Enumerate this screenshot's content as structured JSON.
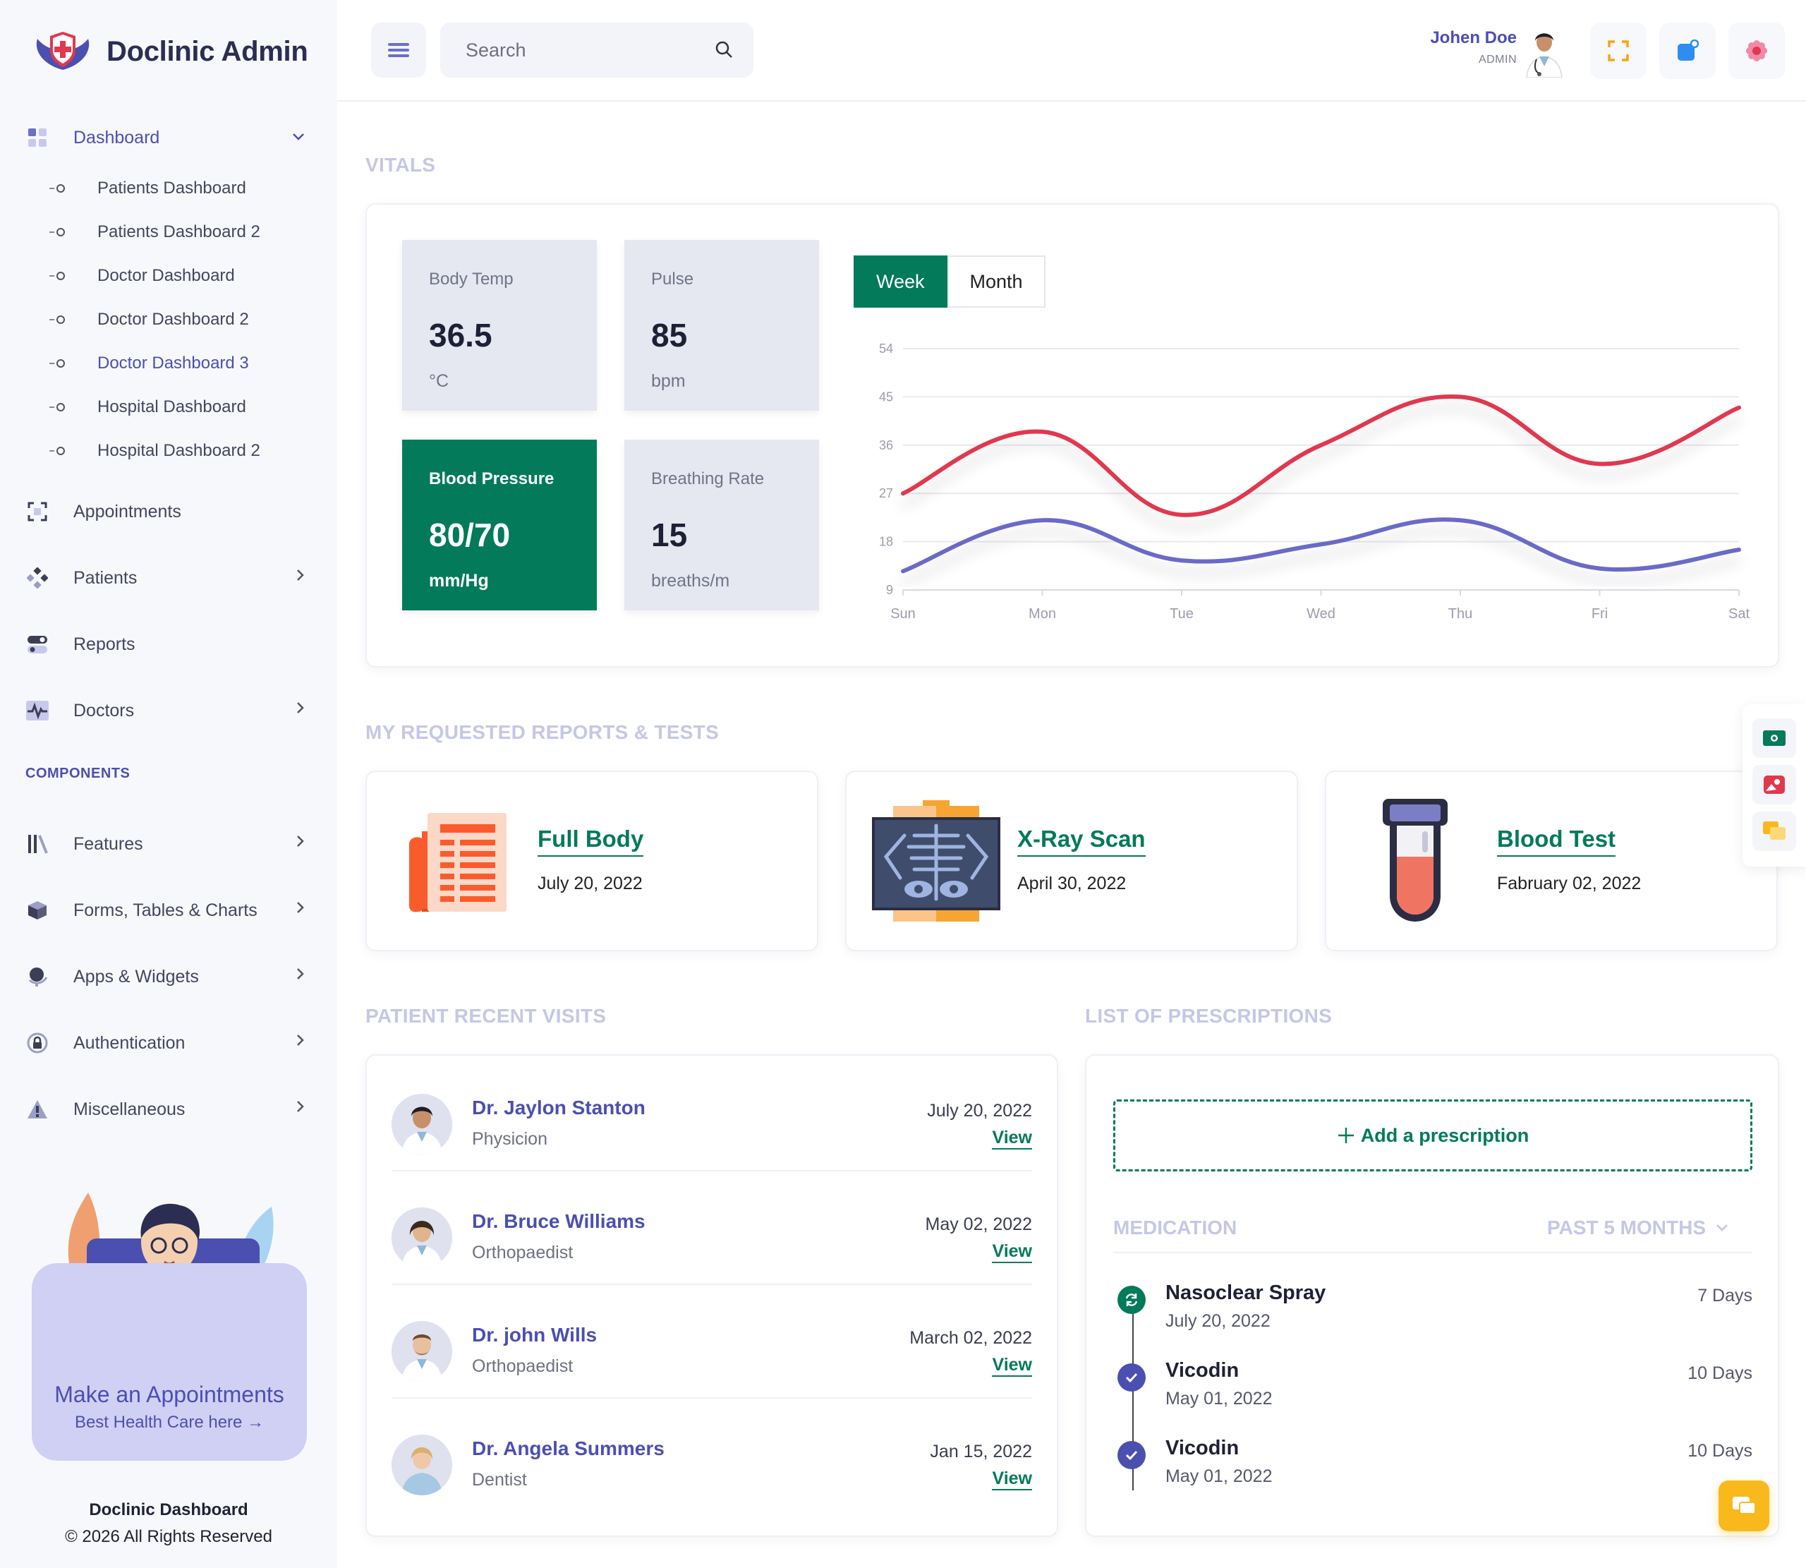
{
  "brand": {
    "name": "Doclinic Admin"
  },
  "sidebar": {
    "dashboard_label": "Dashboard",
    "sub_items": [
      {
        "label": "Patients Dashboard",
        "active": false
      },
      {
        "label": "Patients Dashboard 2",
        "active": false
      },
      {
        "label": "Doctor Dashboard",
        "active": false
      },
      {
        "label": "Doctor Dashboard 2",
        "active": false
      },
      {
        "label": "Doctor Dashboard 3",
        "active": true
      },
      {
        "label": "Hospital Dashboard",
        "active": false
      },
      {
        "label": "Hospital Dashboard 2",
        "active": false
      }
    ],
    "items": [
      {
        "label": "Appointments",
        "icon": "appointments-icon",
        "chevron": false
      },
      {
        "label": "Patients",
        "icon": "patients-icon",
        "chevron": true
      },
      {
        "label": "Reports",
        "icon": "reports-icon",
        "chevron": false
      },
      {
        "label": "Doctors",
        "icon": "pulse-icon",
        "chevron": true
      }
    ],
    "components_label": "COMPONENTS",
    "components": [
      {
        "label": "Features",
        "icon": "features-icon"
      },
      {
        "label": "Forms, Tables & Charts",
        "icon": "box-icon"
      },
      {
        "label": "Apps & Widgets",
        "icon": "globe-icon"
      },
      {
        "label": "Authentication",
        "icon": "lock-icon"
      },
      {
        "label": "Miscellaneous",
        "icon": "warning-icon"
      }
    ],
    "promo": {
      "title": "Make an Appointments",
      "link": "Best Health Care here →"
    },
    "footer": {
      "title": "Doclinic Dashboard",
      "copyright": "© 2026 All Rights Reserved"
    }
  },
  "topbar": {
    "search_placeholder": "Search",
    "user_name": "Johen Doe",
    "user_role": "ADMIN"
  },
  "vitals": {
    "section_title": "VITALS",
    "cards": [
      {
        "label": "Body Temp",
        "value": "36.5",
        "unit": "°C"
      },
      {
        "label": "Pulse",
        "value": "85",
        "unit": "bpm"
      },
      {
        "label": "Blood Pressure",
        "value": "80/70",
        "unit": "mm/Hg"
      },
      {
        "label": "Breathing Rate",
        "value": "15",
        "unit": "breaths/m"
      }
    ],
    "tabs": [
      "Week",
      "Month"
    ],
    "active_tab": "Week"
  },
  "chart_data": {
    "type": "line",
    "categories": [
      "Sun",
      "Mon",
      "Tue",
      "Wed",
      "Thu",
      "Fri",
      "Sat"
    ],
    "ylim": [
      9,
      54
    ],
    "yticks": [
      9,
      18,
      27,
      36,
      45,
      54
    ],
    "series": [
      {
        "values": [
          27,
          38.5,
          23,
          36,
          45,
          32.5,
          43
        ],
        "color": "#e0384f"
      },
      {
        "values": [
          12.5,
          22,
          14.5,
          17.5,
          22,
          13,
          16.5
        ],
        "color": "#6b6bc8"
      }
    ],
    "grid": true
  },
  "reports": {
    "section_title": "MY REQUESTED REPORTS & TESTS",
    "items": [
      {
        "title": "Full Body",
        "date": "July 20, 2022",
        "icon": "report-document-icon"
      },
      {
        "title": "X-Ray Scan",
        "date": "April 30, 2022",
        "icon": "xray-icon"
      },
      {
        "title": "Blood Test",
        "date": "Fabruary 02, 2022",
        "icon": "test-tube-icon"
      }
    ]
  },
  "visits": {
    "section_title": "PATIENT RECENT VISITS",
    "items": [
      {
        "name": "Dr. Jaylon Stanton",
        "specialty": "Physicion",
        "date": "July 20, 2022",
        "link": "View"
      },
      {
        "name": "Dr. Bruce Williams",
        "specialty": "Orthopaedist",
        "date": "May 02, 2022",
        "link": "View"
      },
      {
        "name": "Dr. john Wills",
        "specialty": "Orthopaedist",
        "date": "March 02, 2022",
        "link": "View"
      },
      {
        "name": "Dr. Angela Summers",
        "specialty": "Dentist",
        "date": "Jan 15, 2022",
        "link": "View"
      }
    ]
  },
  "prescriptions": {
    "section_title": "LIST OF PRESCRIPTIONS",
    "add_label": "Add a prescription",
    "medication_label": "MEDICATION",
    "period_label": "PAST 5 MONTHS",
    "items": [
      {
        "name": "Nasoclear Spray",
        "date": "July 20, 2022",
        "days": "7 Days",
        "icon": "refresh-icon",
        "color": "#037a5a"
      },
      {
        "name": "Vicodin",
        "date": "May 01, 2022",
        "days": "10 Days",
        "icon": "check-icon",
        "color": "#4b4fb0"
      },
      {
        "name": "Vicodin",
        "date": "May 01, 2022",
        "days": "10 Days",
        "icon": "check-icon",
        "color": "#4b4fb0"
      }
    ]
  },
  "colors": {
    "primary": "#4b4fb0",
    "green": "#037a5a",
    "red": "#e0384f",
    "accent": "#f9b81b"
  }
}
